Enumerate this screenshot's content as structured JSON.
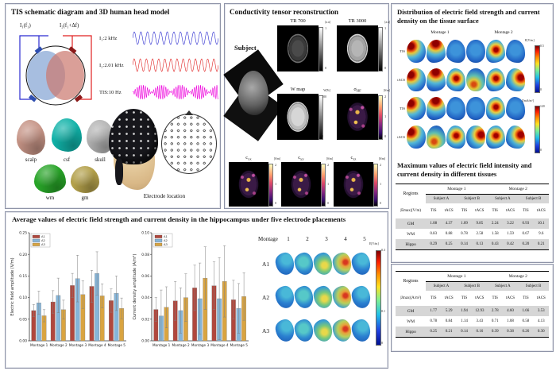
{
  "panel_tis": {
    "title": "TIS schematic diagram and 3D human head model",
    "source1_label": "I₁(f₁)",
    "source2_label": "I₂(f₁+Δf)",
    "waveforms": [
      {
        "label": "I₁:2 kHz",
        "color": "#2b2bd0"
      },
      {
        "label": "I₂:2.01 kHz",
        "color": "#e02020"
      },
      {
        "label": "TIS:10 Hz",
        "color": "#ee00dd"
      }
    ],
    "head_models": [
      {
        "label": "scalp",
        "color": "#c59385"
      },
      {
        "label": "csf",
        "color": "#10b2a8"
      },
      {
        "label": "skull",
        "color": "#b4b4b4"
      },
      {
        "label": "wm",
        "color": "#28a428"
      },
      {
        "label": "gm",
        "color": "#b3a04a"
      }
    ],
    "electrode_caption": "Electrode location"
  },
  "panel_conductivity": {
    "title": "Conductivity tensor reconstruction",
    "subject_label": "Subject",
    "images": [
      {
        "label": "TR 700",
        "sub": "",
        "cbar_label": "[a.u]",
        "ticks": [
          "1",
          "0"
        ]
      },
      {
        "label": "TR 3000",
        "sub": "",
        "cbar_label": "[a.u]",
        "ticks": [
          "1",
          "0"
        ]
      },
      {
        "label": "W map",
        "sub": "",
        "cbar_label": "W[%]",
        "ticks": [
          "100",
          "0"
        ]
      },
      {
        "label": "σ",
        "sub": "HF",
        "cbar_label": "[S/m]",
        "ticks": [
          "2",
          "1",
          "0"
        ]
      },
      {
        "label": "c",
        "sub": "xx",
        "cbar_label": "[S/m]",
        "ticks": [
          "2",
          "1",
          "0"
        ]
      },
      {
        "label": "c",
        "sub": "yy",
        "cbar_label": "[S/m]",
        "ticks": [
          "2",
          "1",
          "0"
        ]
      },
      {
        "label": "c",
        "sub": "zz",
        "cbar_label": "[S/m]",
        "ticks": [
          "2",
          "1",
          "0"
        ]
      }
    ]
  },
  "panel_distribution": {
    "title": "Distribution of electric field strength and current density on the tissue surface",
    "montage_headers": [
      "Montage 1",
      "Montage 2"
    ],
    "row_labels": [
      "TIS",
      "tACS",
      "TIS",
      "tACS"
    ],
    "colorbars": [
      {
        "label": "E[V/m]",
        "max": "0.5",
        "min": "0"
      },
      {
        "label": "J[mA/m²]",
        "max": "120",
        "min": "0"
      }
    ]
  },
  "tables_section": {
    "title": "Maximum values of electric field intensity and current density in different tissues",
    "tables": [
      {
        "corner": "Regions",
        "montages": [
          "Montage 1",
          "Montage 2"
        ],
        "subjects": [
          "Subject A",
          "Subject B",
          "Subject A",
          "Subject B"
        ],
        "measure": "|Emax|(V/m)",
        "subcols": [
          "TIS",
          "tACS",
          "TIS",
          "tACS",
          "TIS",
          "tACS",
          "TIS",
          "tACS"
        ],
        "rows": [
          {
            "region": "GM",
            "values": [
              "1.08",
              "4.37",
              "1.09",
              "9.85",
              "2.24",
              "3.22",
              "0.93",
              "10.1"
            ]
          },
          {
            "region": "WM",
            "values": [
              "0.83",
              "0.88",
              "0.78",
              "2.58",
              "1.58",
              "1.59",
              "0.67",
              "9.6"
            ]
          },
          {
            "region": "Hippo",
            "values": [
              "0.29",
              "0.25",
              "0.14",
              "0.13",
              "0.43",
              "0.42",
              "0.20",
              "0.21"
            ]
          }
        ]
      },
      {
        "corner": "Regions",
        "montages": [
          "Montage 1",
          "Montage 2"
        ],
        "subjects": [
          "Subject A",
          "Subject B",
          "Subject A",
          "Subject B"
        ],
        "measure": "|Jmax|(A/m²)",
        "subcols": [
          "TIS",
          "tACS",
          "TIS",
          "tACS",
          "TIS",
          "tACS",
          "TIS",
          "tACS"
        ],
        "rows": [
          {
            "region": "GM",
            "values": [
              "1.77",
              "5.29",
              "1.94",
              "12.93",
              "2.78",
              "4.60",
              "1.66",
              "3.53"
            ]
          },
          {
            "region": "WM",
            "values": [
              "0.78",
              "0.84",
              "1.14",
              "3.43",
              "0.71",
              "1.08",
              "0.58",
              "4.13"
            ]
          },
          {
            "region": "Hippo",
            "values": [
              "0.25",
              "0.21",
              "0.14",
              "0.16",
              "0.39",
              "0.38",
              "0.26",
              "0.30"
            ]
          }
        ]
      }
    ]
  },
  "panel_hippocampus": {
    "title": "Average values of electric field strength and current density in the hippocampus under five electrode placements",
    "montage_grid": {
      "header": "Montage",
      "columns": [
        "1",
        "2",
        "3",
        "4",
        "5"
      ],
      "rows": [
        "A1",
        "A2",
        "A3"
      ],
      "colorbar": {
        "label": "E[V/m]",
        "ticks": [
          "0.3",
          "0.1",
          "0"
        ]
      }
    }
  },
  "chart_data": [
    {
      "type": "bar",
      "title": "",
      "categories": [
        "Montage 1",
        "Montage 2",
        "Montage 3",
        "Montage 4",
        "Montage 5"
      ],
      "series": [
        {
          "name": "A1",
          "color": "#b0473d",
          "values": [
            0.07,
            0.09,
            0.128,
            0.126,
            0.093
          ],
          "errors": [
            0.014,
            0.026,
            0.028,
            0.037,
            0.027
          ]
        },
        {
          "name": "A2",
          "color": "#85b5d9",
          "values": [
            0.088,
            0.105,
            0.144,
            0.156,
            0.11
          ],
          "errors": [
            0.027,
            0.04,
            0.054,
            0.05,
            0.04
          ]
        },
        {
          "name": "A3",
          "color": "#d9a441",
          "values": [
            0.058,
            0.072,
            0.107,
            0.104,
            0.075
          ],
          "errors": [
            0.014,
            0.022,
            0.032,
            0.028,
            0.024
          ]
        }
      ],
      "xlabel": "",
      "ylabel": "Electric field amplitude (V/m)",
      "ylim": [
        0,
        0.25
      ],
      "ytick_step": 0.05,
      "legend_position": "top-left",
      "grid": false
    },
    {
      "type": "bar",
      "title": "",
      "categories": [
        "Montage 1",
        "Montage 2",
        "Montage 3",
        "Montage 4",
        "Montage 5"
      ],
      "series": [
        {
          "name": "A1",
          "color": "#b0473d",
          "values": [
            0.029,
            0.037,
            0.049,
            0.051,
            0.038
          ],
          "errors": [
            0.011,
            0.018,
            0.021,
            0.022,
            0.018
          ]
        },
        {
          "name": "A2",
          "color": "#85b5d9",
          "values": [
            0.023,
            0.028,
            0.039,
            0.039,
            0.03
          ],
          "errors": [
            0.024,
            0.021,
            0.033,
            0.038,
            0.023
          ]
        },
        {
          "name": "A3",
          "color": "#d9a441",
          "values": [
            0.031,
            0.04,
            0.058,
            0.055,
            0.041
          ],
          "errors": [
            0.019,
            0.022,
            0.029,
            0.033,
            0.022
          ]
        }
      ],
      "xlabel": "",
      "ylabel": "Current density amplitude (A/m²)",
      "ylim": [
        0,
        0.1
      ],
      "ytick_step": 0.02,
      "legend_position": "top-left",
      "grid": false
    }
  ]
}
